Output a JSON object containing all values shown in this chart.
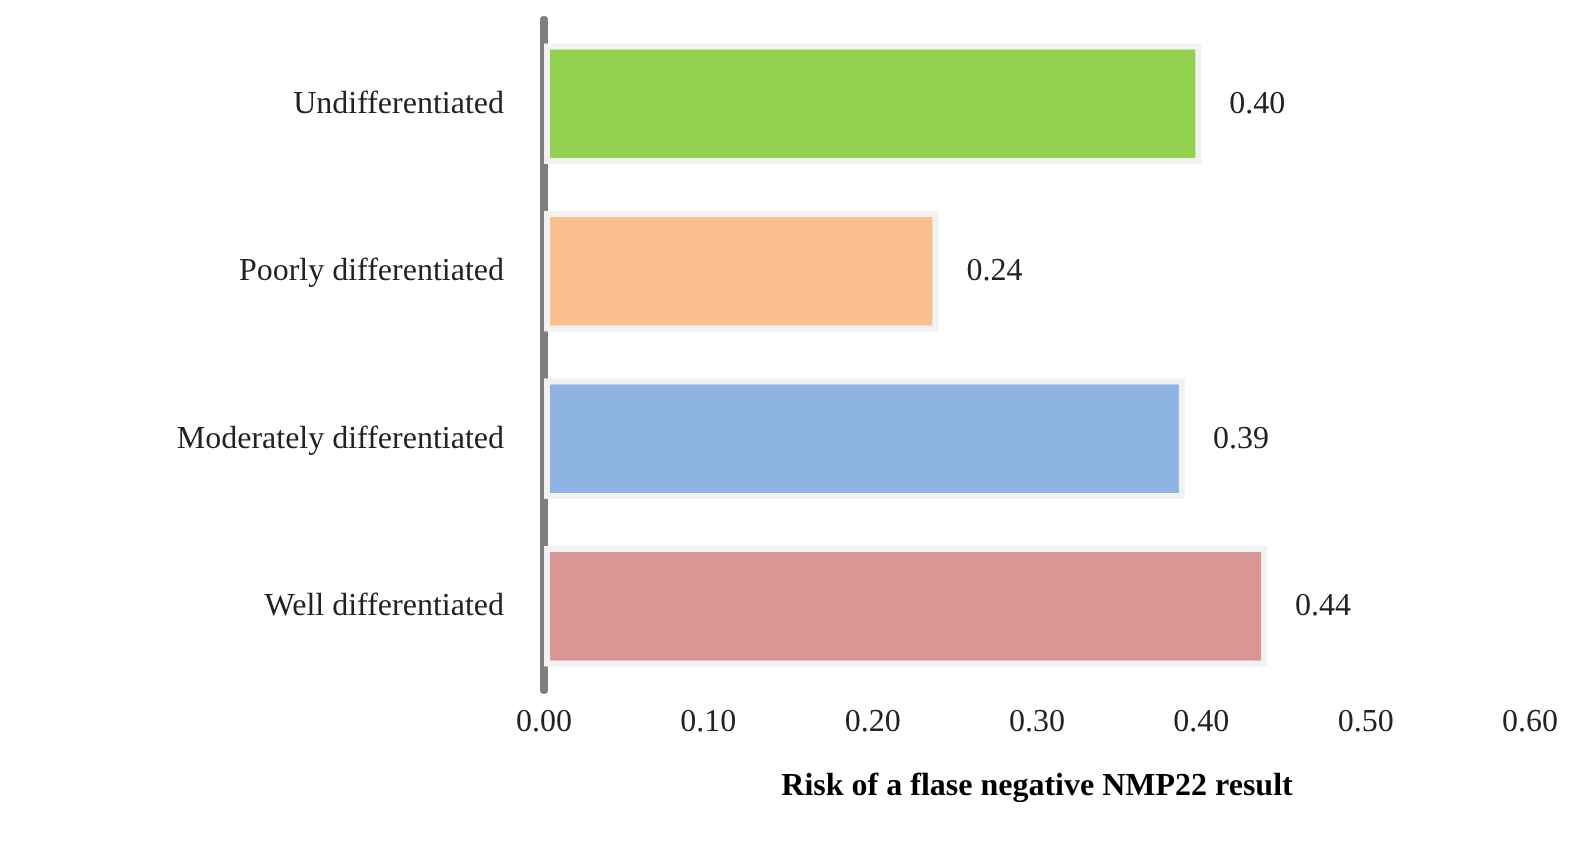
{
  "chart_data": {
    "type": "bar",
    "orientation": "horizontal",
    "xlabel": "Risk of a flase negative NMP22 result",
    "categories": [
      "Undifferentiated",
      "Poorly differentiated",
      "Moderately differentiated",
      "Well differentiated"
    ],
    "values": [
      0.4,
      0.24,
      0.39,
      0.44
    ],
    "colors": [
      "#92d050",
      "#fac090",
      "#8eb4e3",
      "#d99694"
    ],
    "xlim": [
      0,
      0.6
    ],
    "xticks": [
      {
        "value": 0,
        "label": "0.00"
      },
      {
        "value": 0.1,
        "label": "0.10"
      },
      {
        "value": 0.2,
        "label": "0.20"
      },
      {
        "value": 0.3,
        "label": "0.30"
      },
      {
        "value": 0.4,
        "label": "0.40"
      },
      {
        "value": 0.5,
        "label": "0.50"
      },
      {
        "value": 0.6,
        "label": "0.60"
      }
    ],
    "value_labels": [
      "0.40",
      "0.24",
      "0.39",
      "0.44"
    ]
  }
}
